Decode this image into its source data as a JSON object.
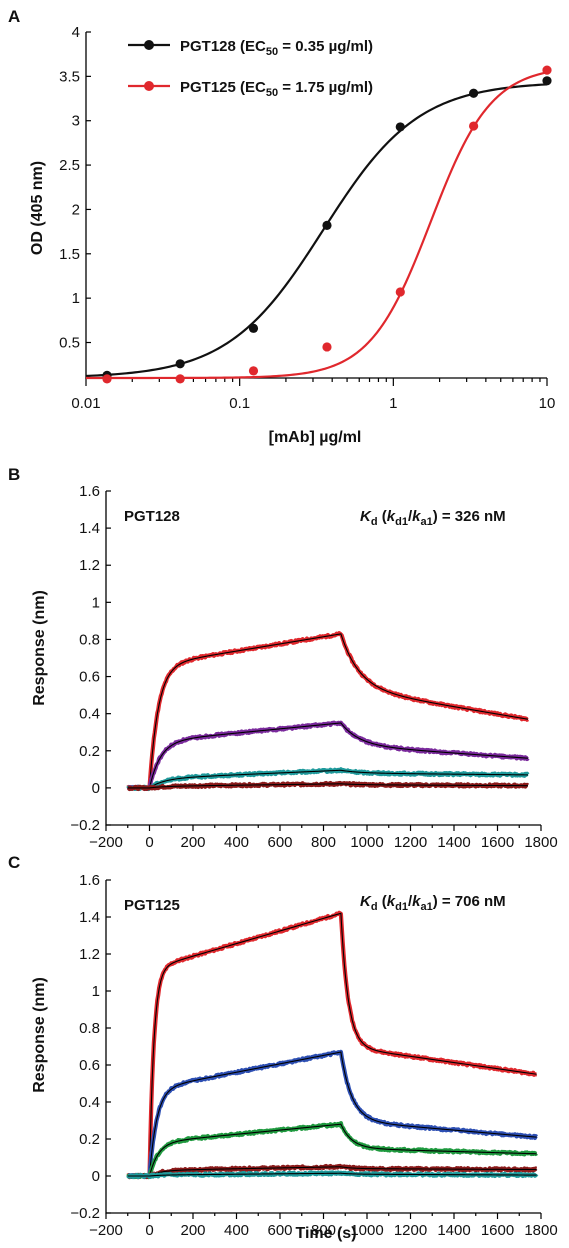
{
  "figure_letters": [
    "A",
    "B",
    "C"
  ],
  "colors": {
    "black": "#111111",
    "red": "#e0282d",
    "purple": "#7a2a9c",
    "teal": "#1f9a9c",
    "darkred": "#8b1a1a",
    "blue": "#2d4fb3",
    "green": "#1f9a3f",
    "fit": "#000000"
  },
  "chart_data": [
    {
      "panel": "A",
      "type": "scatter",
      "xlabel": "[mAb] µg/ml",
      "ylabel": "OD (405 nm)",
      "xscale": "log",
      "xlim": [
        0.01,
        10
      ],
      "ylim": [
        0.1,
        4
      ],
      "xticks": [
        0.01,
        0.1,
        1,
        10
      ],
      "xtick_labels": [
        "0.01",
        "0.1",
        "1",
        "10"
      ],
      "yticks": [
        0.5,
        1,
        1.5,
        2,
        2.5,
        3,
        3.5,
        4
      ],
      "ytick_labels": [
        "0.5",
        "1",
        "1.5",
        "2",
        "2.5",
        "3",
        "3.5",
        "4"
      ],
      "legend_position": "top-left",
      "series": [
        {
          "name": "PGT128 (EC50 = 0.35 µg/ml)",
          "name_main": "PGT128 (EC",
          "name_sub": "50",
          "name_tail": " = 0.35 µg/ml)",
          "color": "black",
          "x": [
            0.0137,
            0.041,
            0.123,
            0.37,
            1.11,
            3.33,
            10
          ],
          "y": [
            0.13,
            0.26,
            0.66,
            1.82,
            2.93,
            3.31,
            3.45
          ],
          "fit": {
            "bottom": 0.1,
            "top": 3.44,
            "ec50": 0.35,
            "hill": 1.4
          }
        },
        {
          "name": "PGT125 (EC50 = 1.75 µg/ml)",
          "name_main": "PGT125 (EC",
          "name_sub": "50",
          "name_tail": " = 1.75 µg/ml)",
          "color": "red",
          "x": [
            0.0137,
            0.041,
            0.123,
            0.37,
            1.11,
            3.33,
            10
          ],
          "y": [
            0.09,
            0.09,
            0.18,
            0.45,
            1.07,
            2.94,
            3.57
          ],
          "fit": {
            "bottom": 0.1,
            "top": 3.62,
            "ec50": 1.75,
            "hill": 2.2
          }
        }
      ]
    },
    {
      "panel": "B",
      "type": "line",
      "xlabel": "",
      "ylabel": "Response (nm)",
      "xlim": [
        -200,
        1800
      ],
      "ylim": [
        -0.2,
        1.6
      ],
      "xticks": [
        -200,
        0,
        200,
        400,
        600,
        800,
        1000,
        1200,
        1400,
        1600,
        1800
      ],
      "xtick_labels": [
        "−200",
        "0",
        "200",
        "400",
        "600",
        "800",
        "1000",
        "1200",
        "1400",
        "1600",
        "1800"
      ],
      "yticks": [
        -0.2,
        0,
        0.2,
        0.4,
        0.6,
        0.8,
        1,
        1.2,
        1.4,
        1.6
      ],
      "ytick_labels": [
        "−0.2",
        "0",
        "0.2",
        "0.4",
        "0.6",
        "0.8",
        "1",
        "1.2",
        "1.4",
        "1.6"
      ],
      "label": "PGT128",
      "kd_text": {
        "k": "K",
        "ksub": "d",
        "open": " (",
        "kd1": "k",
        "kd1sub": "d1",
        "slash": "/",
        "ka1": "k",
        "ka1sub": "a1",
        "tail": ") = 326 nM"
      },
      "x_start": -100,
      "association_start": 0,
      "dissociation_start": 880,
      "x_end": 1740,
      "series": [
        {
          "color": "red",
          "rise": 0.66,
          "slow": 0.17,
          "kon": 0.025,
          "drop": 0.29,
          "slowdrop": 0.17,
          "koff": 0.012
        },
        {
          "color": "purple",
          "rise": 0.25,
          "slow": 0.1,
          "kon": 0.02,
          "drop": 0.12,
          "slowdrop": 0.07,
          "koff": 0.012
        },
        {
          "color": "teal",
          "rise": 0.05,
          "slow": 0.045,
          "kon": 0.015,
          "drop": 0.015,
          "slowdrop": 0.01,
          "koff": 0.012
        },
        {
          "color": "darkred",
          "rise": 0.008,
          "slow": 0.014,
          "kon": 0.015,
          "drop": 0.005,
          "slowdrop": 0.005,
          "koff": 0.012
        }
      ]
    },
    {
      "panel": "C",
      "type": "line",
      "xlabel": "Time (s)",
      "ylabel": "Response (nm)",
      "xlim": [
        -200,
        1800
      ],
      "ylim": [
        -0.2,
        1.6
      ],
      "xticks": [
        -200,
        0,
        200,
        400,
        600,
        800,
        1000,
        1200,
        1400,
        1600,
        1800
      ],
      "xtick_labels": [
        "−200",
        "0",
        "200",
        "400",
        "600",
        "800",
        "1000",
        "1200",
        "1400",
        "1600",
        "1800"
      ],
      "yticks": [
        -0.2,
        0,
        0.2,
        0.4,
        0.6,
        0.8,
        1,
        1.2,
        1.4,
        1.6
      ],
      "ytick_labels": [
        "−0.2",
        "0",
        "0.2",
        "0.4",
        "0.6",
        "0.8",
        "1",
        "1.2",
        "1.4",
        "1.6"
      ],
      "label": "PGT125",
      "kd_text": {
        "k": "K",
        "ksub": "d",
        "open": " (",
        "kd1": "k",
        "kd1sub": "d1",
        "slash": "/",
        "ka1": "k",
        "ka1sub": "a1",
        "tail": ") = 706 nM"
      },
      "x_start": -100,
      "association_start": 0,
      "dissociation_start": 880,
      "x_end": 1780,
      "series": [
        {
          "color": "red",
          "rise": 1.12,
          "slow": 0.3,
          "kon": 0.05,
          "drop": 0.72,
          "slowdrop": 0.15,
          "koff": 0.03
        },
        {
          "color": "blue",
          "rise": 0.47,
          "slow": 0.2,
          "kon": 0.03,
          "drop": 0.37,
          "slowdrop": 0.09,
          "koff": 0.02
        },
        {
          "color": "green",
          "rise": 0.18,
          "slow": 0.1,
          "kon": 0.025,
          "drop": 0.13,
          "slowdrop": 0.03,
          "koff": 0.02
        },
        {
          "color": "darkred",
          "rise": 0.03,
          "slow": 0.02,
          "kon": 0.02,
          "drop": 0.01,
          "slowdrop": 0.005,
          "koff": 0.02
        },
        {
          "color": "teal",
          "rise": 0.005,
          "slow": 0.01,
          "kon": 0.02,
          "drop": 0.005,
          "slowdrop": 0.005,
          "koff": 0.02
        }
      ]
    }
  ]
}
